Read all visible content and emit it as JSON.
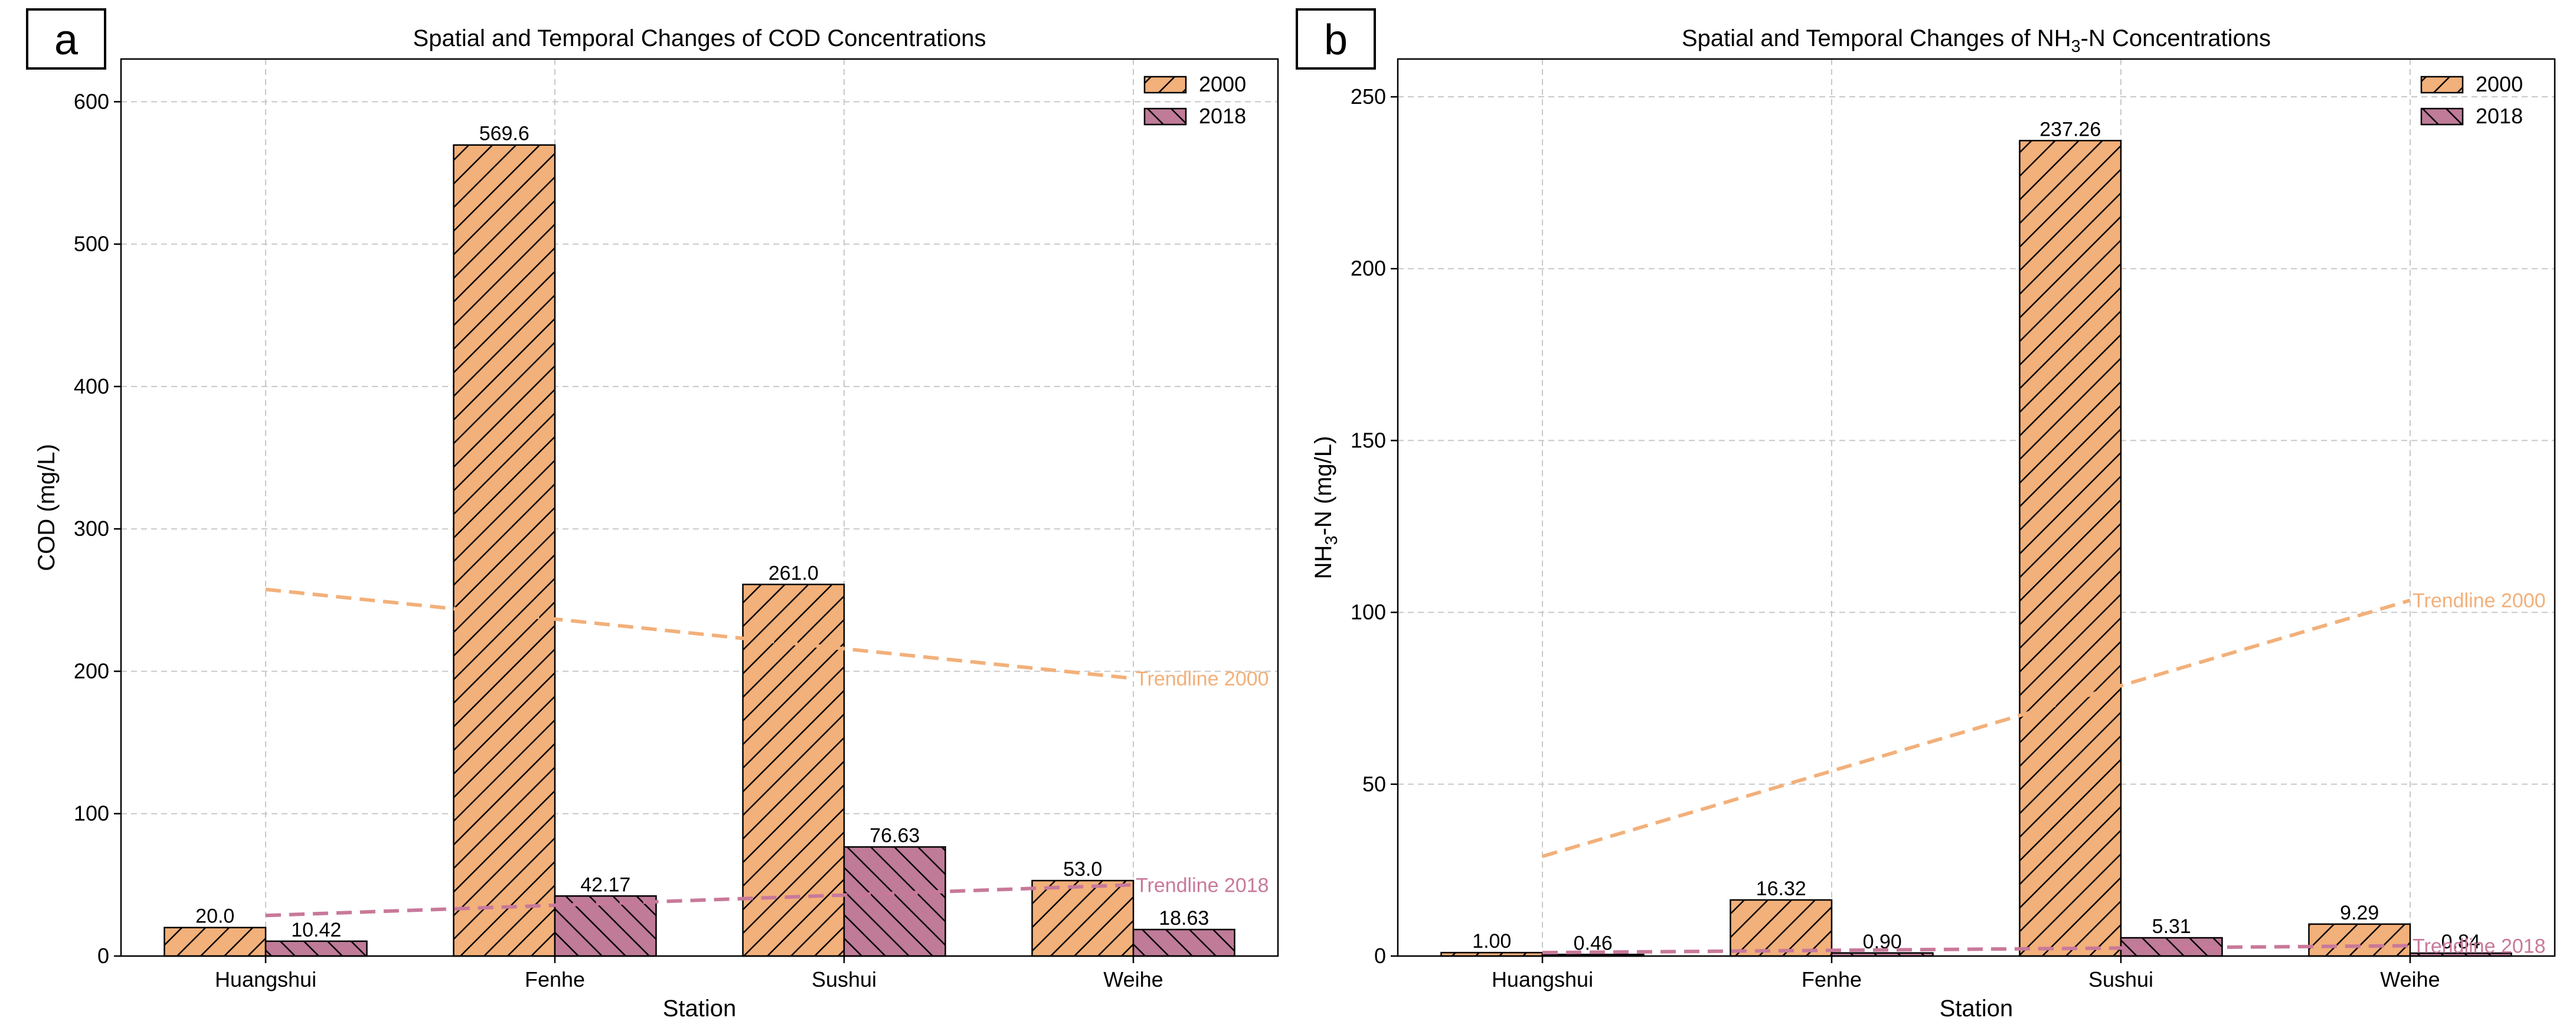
{
  "chart_data": [
    {
      "panel_letter": "a",
      "type": "bar",
      "title_parts": [
        {
          "text": "Spatial and Temporal Changes of COD Concentrations",
          "sub": false
        }
      ],
      "xlabel": "Station",
      "ylabel_parts": [
        {
          "text": "COD (mg/L)",
          "sub": false
        }
      ],
      "categories": [
        "Huangshui",
        "Fenhe",
        "Sushui",
        "Weihe"
      ],
      "ylim": [
        0,
        630
      ],
      "yticks": [
        0,
        100,
        200,
        300,
        400,
        500,
        600
      ],
      "grid": true,
      "legend_position": "top-right",
      "series": [
        {
          "name": "2000",
          "values": [
            20.0,
            569.6,
            261.0,
            53.0
          ],
          "labels": [
            "20.0",
            "569.6",
            "261.0",
            "53.0"
          ],
          "color": "#f2b07a",
          "hatch": "forward"
        },
        {
          "name": "2018",
          "values": [
            10.42,
            42.17,
            76.63,
            18.63
          ],
          "labels": [
            "10.42",
            "42.17",
            "76.63",
            "18.63"
          ],
          "color": "#bf7b98",
          "hatch": "back"
        }
      ],
      "trendlines": [
        {
          "label": "Trendline 2000",
          "start": 257.5,
          "end": 195.0,
          "color": "#f2b07a"
        },
        {
          "label": "Trendline 2018",
          "start": 28.5,
          "end": 50.0,
          "color": "#c8799a"
        }
      ]
    },
    {
      "panel_letter": "b",
      "type": "bar",
      "title_parts": [
        {
          "text": "Spatial and Temporal Changes of NH",
          "sub": false
        },
        {
          "text": "3",
          "sub": true
        },
        {
          "text": "-N Concentrations",
          "sub": false
        }
      ],
      "xlabel": "Station",
      "ylabel_parts": [
        {
          "text": "NH",
          "sub": false
        },
        {
          "text": "3",
          "sub": true
        },
        {
          "text": "-N (mg/L)",
          "sub": false
        }
      ],
      "categories": [
        "Huangshui",
        "Fenhe",
        "Sushui",
        "Weihe"
      ],
      "ylim": [
        0,
        261
      ],
      "yticks": [
        0,
        50,
        100,
        150,
        200,
        250
      ],
      "grid": true,
      "legend_position": "top-right",
      "series": [
        {
          "name": "2000",
          "values": [
            1.0,
            16.32,
            237.26,
            9.29
          ],
          "labels": [
            "1.00",
            "16.32",
            "237.26",
            "9.29"
          ],
          "color": "#f2b07a",
          "hatch": "forward"
        },
        {
          "name": "2018",
          "values": [
            0.46,
            0.9,
            5.31,
            0.84
          ],
          "labels": [
            "0.46",
            "0.90",
            "5.31",
            "0.84"
          ],
          "color": "#bf7b98",
          "hatch": "back"
        }
      ],
      "trendlines": [
        {
          "label": "Trendline 2000",
          "start": 29.0,
          "end": 103.5,
          "color": "#f2b07a"
        },
        {
          "label": "Trendline 2018",
          "start": 1.0,
          "end": 3.0,
          "color": "#c8799a"
        }
      ]
    }
  ]
}
